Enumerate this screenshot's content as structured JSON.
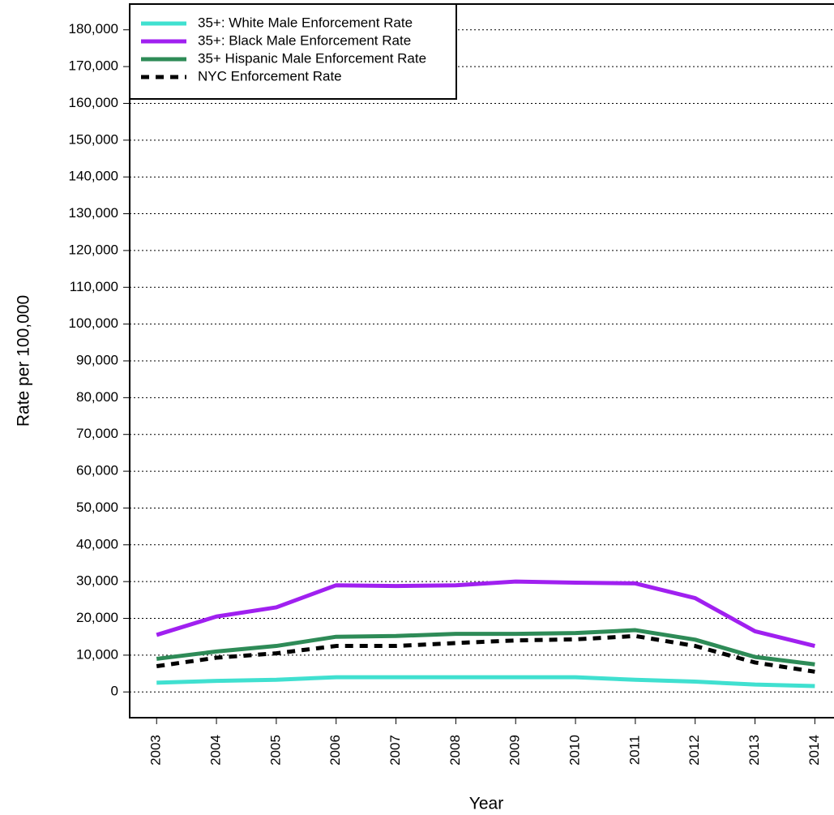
{
  "chart_data": {
    "type": "line",
    "x_label": "Year",
    "y_label": "Rate per 100,000",
    "x": [
      2003,
      2004,
      2005,
      2006,
      2007,
      2008,
      2009,
      2010,
      2011,
      2012,
      2013,
      2014
    ],
    "xlim": [
      2002.55,
      2014.32
    ],
    "xticks": [
      2003,
      2004,
      2005,
      2006,
      2007,
      2008,
      2009,
      2010,
      2011,
      2012,
      2013,
      2014
    ],
    "ylim": [
      -7000,
      187000
    ],
    "yticks": [
      0,
      {
        "value": 10000,
        "label": "10,000"
      },
      {
        "value": 20000,
        "label": "20,000"
      },
      {
        "value": 30000,
        "label": "30,000"
      },
      {
        "value": 40000,
        "label": "40,000"
      },
      {
        "value": 50000,
        "label": "50,000"
      },
      {
        "value": 60000,
        "label": "60,000"
      },
      {
        "value": 70000,
        "label": "70,000"
      },
      {
        "value": 80000,
        "label": "80,000"
      },
      {
        "value": 90000,
        "label": "90,000"
      },
      {
        "value": 100000,
        "label": "100,000"
      },
      {
        "value": 110000,
        "label": "110,000"
      },
      {
        "value": 120000,
        "label": "120,000"
      },
      {
        "value": 130000,
        "label": "130,000"
      },
      {
        "value": 140000,
        "label": "140,000"
      },
      {
        "value": 150000,
        "label": "150,000"
      },
      {
        "value": 160000,
        "label": "160,000"
      },
      {
        "value": 170000,
        "label": "170,000"
      },
      {
        "value": 180000,
        "label": "180,000"
      }
    ],
    "grid": true,
    "legend": "top-left",
    "series": [
      {
        "name": "35+: White Male Enforcement Rate",
        "color": "#40e0d0",
        "values": [
          2500,
          3000,
          3300,
          4000,
          4000,
          4000,
          4000,
          4000,
          3300,
          2800,
          2000,
          1600
        ]
      },
      {
        "name": "35+: Black Male Enforcement Rate",
        "color": "#a020f0",
        "values": [
          15500,
          20500,
          23000,
          29000,
          28800,
          29000,
          30000,
          29700,
          29500,
          25500,
          16500,
          12500
        ]
      },
      {
        "name": "35+ Hispanic Male Enforcement Rate",
        "color": "#2e8b57",
        "values": [
          9000,
          11000,
          12500,
          15000,
          15200,
          15800,
          15800,
          16000,
          16800,
          14200,
          9500,
          7500
        ]
      },
      {
        "name": "NYC Enforcement Rate",
        "color": "#000000",
        "dashed": true,
        "values": [
          7000,
          9300,
          10500,
          12500,
          12500,
          13300,
          14000,
          14300,
          15200,
          12500,
          8000,
          5500
        ]
      }
    ]
  }
}
